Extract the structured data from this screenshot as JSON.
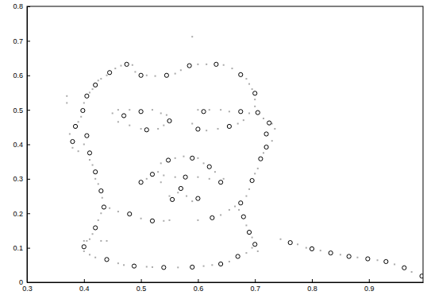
{
  "chart_data": {
    "type": "scatter",
    "xlim": [
      0.3,
      0.995
    ],
    "ylim": [
      0,
      0.8
    ],
    "xticks": [
      0.3,
      0.4,
      0.5,
      0.6,
      0.7,
      0.8,
      0.9
    ],
    "yticks": [
      0,
      0.1,
      0.2,
      0.3,
      0.4,
      0.5,
      0.6,
      0.7,
      0.8
    ],
    "grid": false,
    "series": [
      {
        "color": "#aaaaaa",
        "marker": "square",
        "x": [
          0.43,
          0.44,
          0.455,
          0.465,
          0.485,
          0.49,
          0.51,
          0.525,
          0.56,
          0.57,
          0.6,
          0.615,
          0.645,
          0.66,
          0.685,
          0.69,
          0.695,
          0.7,
          0.7,
          0.425,
          0.415,
          0.41,
          0.4,
          0.395,
          0.39,
          0.37,
          0.37,
          0.375,
          0.38,
          0.39,
          0.4,
          0.41,
          0.415,
          0.42,
          0.425,
          0.432,
          0.43,
          0.425,
          0.415,
          0.41,
          0.405,
          0.715,
          0.73,
          0.735,
          0.73,
          0.715,
          0.705,
          0.7,
          0.69,
          0.685,
          0.672,
          0.685,
          0.695,
          0.705,
          0.4,
          0.41,
          0.42,
          0.46,
          0.47,
          0.51,
          0.52,
          0.565,
          0.61,
          0.625,
          0.655,
          0.685,
          0.695,
          0.445,
          0.46,
          0.5,
          0.54,
          0.55,
          0.6,
          0.64,
          0.655,
          0.665,
          0.4,
          0.43,
          0.44,
          0.45,
          0.46,
          0.48,
          0.52,
          0.535,
          0.545,
          0.46,
          0.48,
          0.5,
          0.53,
          0.54,
          0.6,
          0.62,
          0.64,
          0.655,
          0.69,
          0.59,
          0.615,
          0.635,
          0.67,
          0.68,
          0.535,
          0.56,
          0.575,
          0.6,
          0.61,
          0.63,
          0.645,
          0.51,
          0.53,
          0.54,
          0.56,
          0.6,
          0.62,
          0.535,
          0.55,
          0.565,
          0.58,
          0.59,
          0.745,
          0.775,
          0.79,
          0.815,
          0.85,
          0.88,
          0.915,
          0.945,
          0.975,
          0.59
        ],
        "values": [
          0.59,
          0.6,
          0.62,
          0.628,
          0.63,
          0.61,
          0.6,
          0.598,
          0.605,
          0.615,
          0.632,
          0.632,
          0.63,
          0.62,
          0.59,
          0.575,
          0.56,
          0.53,
          0.51,
          0.585,
          0.56,
          0.55,
          0.52,
          0.48,
          0.465,
          0.54,
          0.52,
          0.43,
          0.39,
          0.38,
          0.4,
          0.355,
          0.34,
          0.3,
          0.285,
          0.245,
          0.2,
          0.18,
          0.14,
          0.125,
          0.12,
          0.475,
          0.46,
          0.445,
          0.41,
          0.375,
          0.33,
          0.315,
          0.27,
          0.25,
          0.21,
          0.165,
          0.13,
          0.09,
          0.09,
          0.08,
          0.072,
          0.055,
          0.05,
          0.045,
          0.044,
          0.043,
          0.047,
          0.05,
          0.06,
          0.085,
          0.1,
          0.215,
          0.205,
          0.185,
          0.178,
          0.18,
          0.18,
          0.195,
          0.21,
          0.22,
          0.12,
          0.12,
          0.12,
          0.49,
          0.5,
          0.5,
          0.5,
          0.49,
          0.485,
          0.465,
          0.455,
          0.445,
          0.445,
          0.455,
          0.5,
          0.5,
          0.5,
          0.495,
          0.49,
          0.46,
          0.44,
          0.445,
          0.46,
          0.47,
          0.345,
          0.36,
          0.365,
          0.36,
          0.345,
          0.32,
          0.3,
          0.3,
          0.32,
          0.31,
          0.305,
          0.305,
          0.3,
          0.29,
          0.25,
          0.26,
          0.25,
          0.235,
          0.125,
          0.11,
          0.1,
          0.092,
          0.08,
          0.072,
          0.064,
          0.052,
          0.03,
          0.712
        ]
      },
      {
        "color": "#000000",
        "marker": "circle",
        "x": [
          0.445,
          0.475,
          0.5,
          0.545,
          0.585,
          0.632,
          0.675,
          0.7,
          0.42,
          0.405,
          0.398,
          0.385,
          0.38,
          0.405,
          0.41,
          0.42,
          0.43,
          0.435,
          0.42,
          0.4,
          0.705,
          0.725,
          0.72,
          0.72,
          0.71,
          0.695,
          0.675,
          0.68,
          0.69,
          0.7,
          0.44,
          0.488,
          0.54,
          0.59,
          0.64,
          0.67,
          0.48,
          0.52,
          0.625,
          0.47,
          0.5,
          0.51,
          0.55,
          0.61,
          0.6,
          0.655,
          0.675,
          0.548,
          0.59,
          0.5,
          0.52,
          0.62,
          0.64,
          0.578,
          0.57,
          0.555,
          0.6,
          0.762,
          0.8,
          0.833,
          0.865,
          0.898,
          0.93,
          0.962,
          0.993
        ],
        "values": [
          0.608,
          0.632,
          0.6,
          0.6,
          0.628,
          0.632,
          0.602,
          0.548,
          0.572,
          0.54,
          0.498,
          0.452,
          0.408,
          0.425,
          0.375,
          0.32,
          0.265,
          0.218,
          0.158,
          0.103,
          0.492,
          0.462,
          0.43,
          0.392,
          0.358,
          0.295,
          0.23,
          0.19,
          0.145,
          0.11,
          0.066,
          0.047,
          0.043,
          0.044,
          0.053,
          0.075,
          0.198,
          0.178,
          0.187,
          0.483,
          0.495,
          0.442,
          0.468,
          0.495,
          0.444,
          0.452,
          0.495,
          0.354,
          0.36,
          0.29,
          0.313,
          0.335,
          0.29,
          0.305,
          0.272,
          0.24,
          0.243,
          0.115,
          0.097,
          0.085,
          0.075,
          0.068,
          0.06,
          0.042,
          0.018
        ]
      }
    ]
  }
}
